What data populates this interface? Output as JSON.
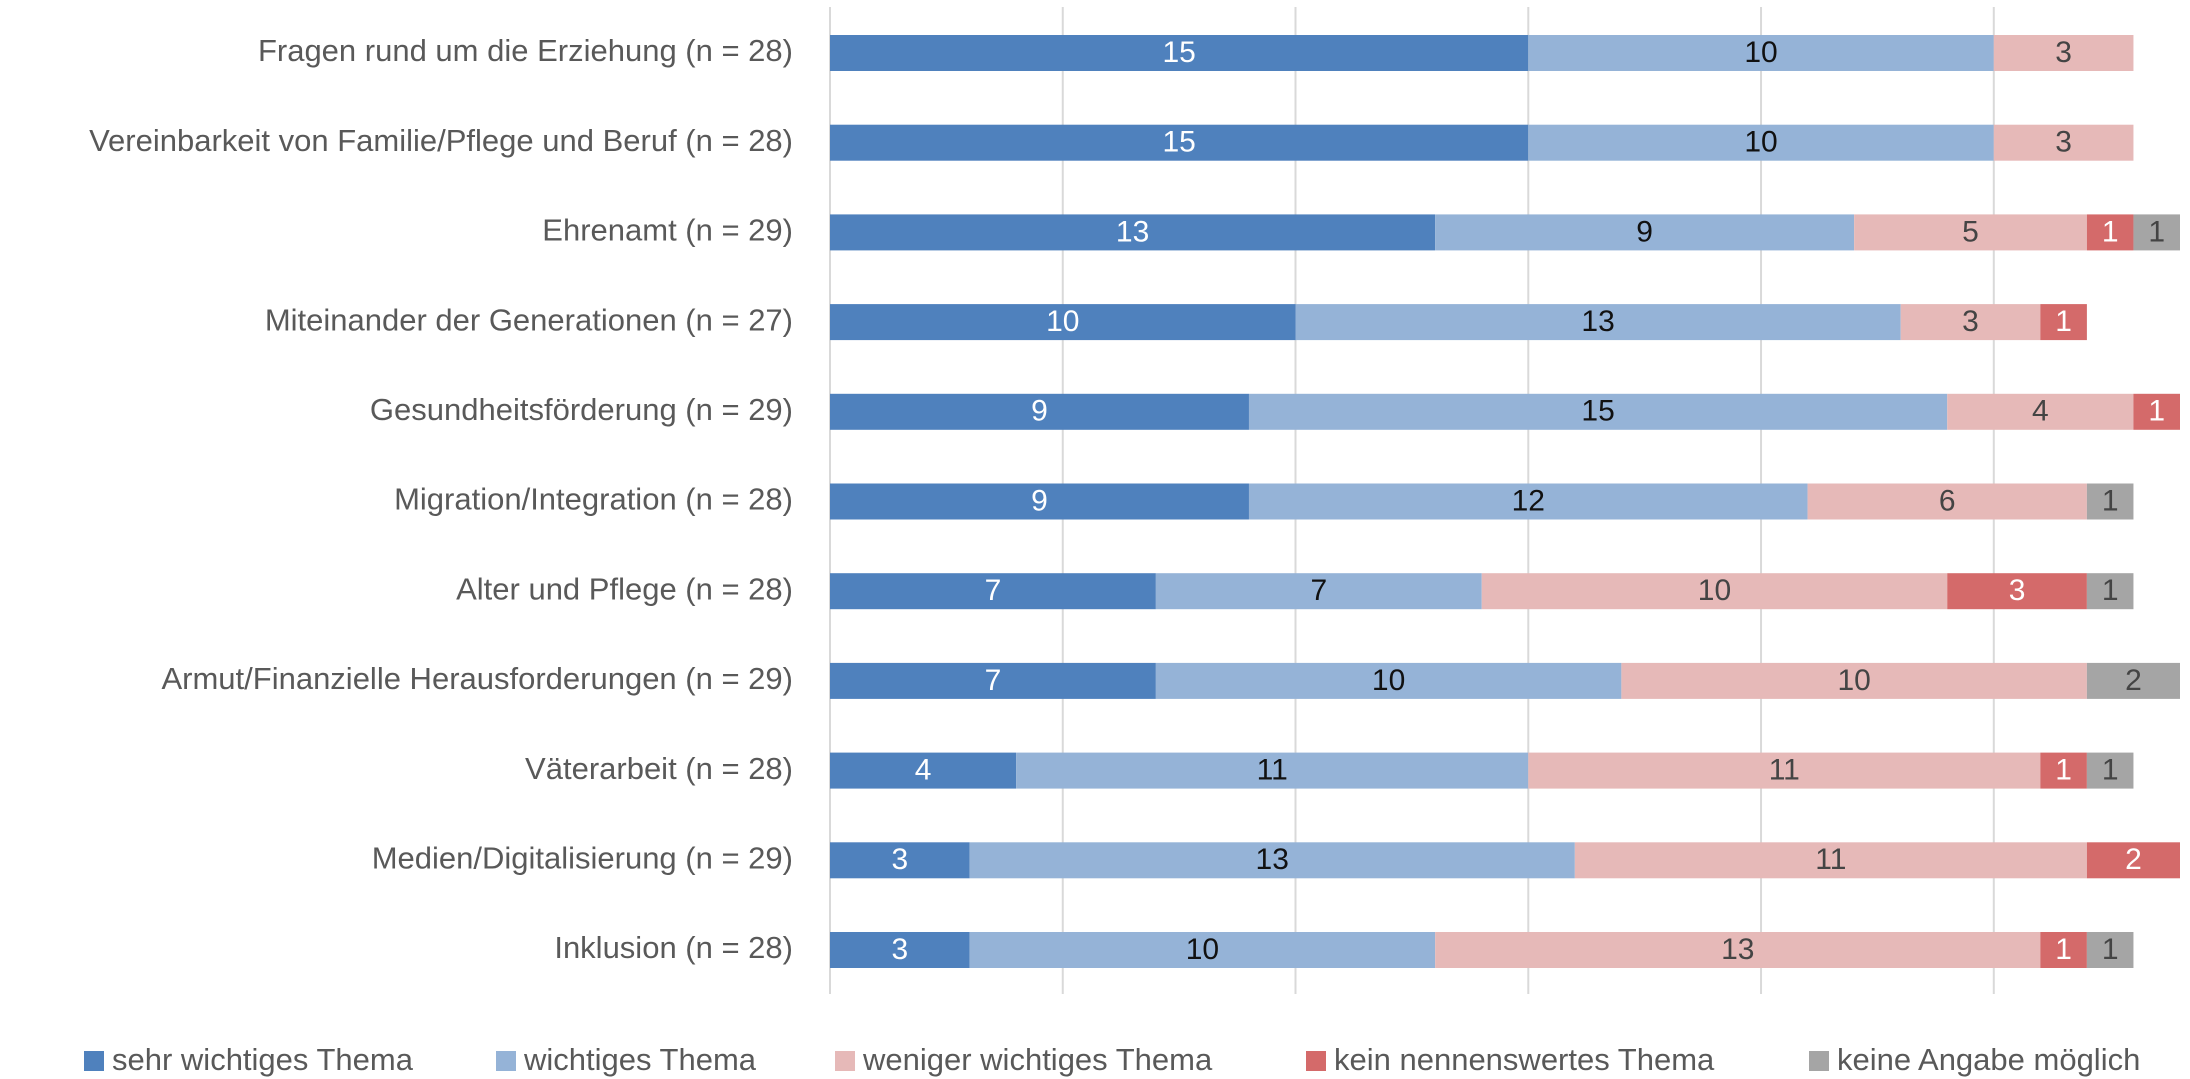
{
  "chart_data": {
    "type": "stacked_barh",
    "categories": [
      "Fragen rund um die Erziehung (n = 28)",
      "Vereinbarkeit von Familie/Pflege und Beruf (n = 28)",
      "Ehrenamt (n = 29)",
      "Miteinander der Generationen (n = 27)",
      "Gesundheitsförderung (n = 29)",
      "Migration/Integration (n = 28)",
      "Alter und Pflege (n = 28)",
      "Armut/Finanzielle Herausforderungen (n = 29)",
      "Väterarbeit (n = 28)",
      "Medien/Digitalisierung (n = 29)",
      "Inklusion (n = 28)"
    ],
    "series": [
      {
        "name": "sehr wichtiges Thema",
        "color": "#4f81bd",
        "values": [
          15,
          15,
          13,
          10,
          9,
          9,
          7,
          7,
          4,
          3,
          3
        ]
      },
      {
        "name": "wichtiges Thema",
        "color": "#95b3d7",
        "values": [
          10,
          10,
          9,
          13,
          15,
          12,
          7,
          10,
          11,
          13,
          10
        ]
      },
      {
        "name": "weniger wichtiges Thema",
        "color": "#e6b9b8",
        "values": [
          3,
          3,
          5,
          3,
          4,
          6,
          10,
          10,
          11,
          11,
          13
        ]
      },
      {
        "name": "kein nennenswertes Thema",
        "color": "#d46a6a",
        "values": [
          null,
          null,
          1,
          1,
          1,
          null,
          3,
          null,
          1,
          2,
          1
        ]
      },
      {
        "name": "keine Angabe möglich",
        "color": "#a5a5a5",
        "values": [
          null,
          null,
          1,
          null,
          null,
          1,
          1,
          2,
          1,
          null,
          1
        ]
      }
    ],
    "xlim": [
      0,
      29
    ],
    "xticks": [
      0,
      5,
      10,
      15,
      20,
      25
    ],
    "grid": true,
    "legend": "bottom"
  }
}
